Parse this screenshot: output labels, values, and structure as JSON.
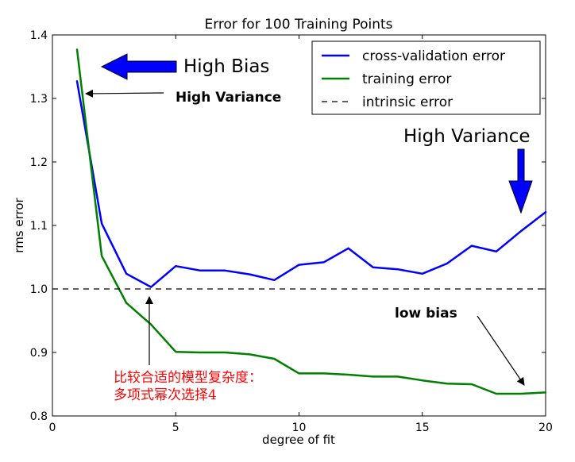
{
  "chart_data": {
    "type": "line",
    "title": "Error for 100 Training Points",
    "xlabel": "degree of fit",
    "ylabel": "rms error",
    "xlim": [
      0,
      20
    ],
    "ylim": [
      0.8,
      1.4
    ],
    "x_ticks": [
      0,
      5,
      10,
      15,
      20
    ],
    "y_ticks": [
      0.8,
      0.9,
      1.0,
      1.1,
      1.2,
      1.3,
      1.4
    ],
    "x_tick_labels": [
      "0",
      "5",
      "10",
      "15",
      "20"
    ],
    "y_tick_labels": [
      "0.8",
      "0.9",
      "1.0",
      "1.1",
      "1.2",
      "1.3",
      "1.4"
    ],
    "grid": false,
    "legend_position": "top-right",
    "series": [
      {
        "name": "cross-validation error",
        "color": "#0000ff",
        "style": "solid",
        "x": [
          1,
          2,
          3,
          4,
          5,
          6,
          7,
          8,
          9,
          10,
          11,
          12,
          13,
          14,
          15,
          16,
          17,
          18,
          19,
          20
        ],
        "values": [
          1.327,
          1.103,
          1.024,
          1.003,
          1.036,
          1.029,
          1.029,
          1.023,
          1.014,
          1.038,
          1.042,
          1.064,
          1.034,
          1.031,
          1.024,
          1.04,
          1.068,
          1.059,
          1.091,
          1.121
        ]
      },
      {
        "name": "training error",
        "color": "#008000",
        "style": "solid",
        "x": [
          1,
          2,
          3,
          4,
          5,
          6,
          7,
          8,
          9,
          10,
          11,
          12,
          13,
          14,
          15,
          16,
          17,
          18,
          19,
          20
        ],
        "values": [
          1.377,
          1.052,
          0.978,
          0.944,
          0.901,
          0.9,
          0.9,
          0.897,
          0.89,
          0.867,
          0.867,
          0.865,
          0.862,
          0.862,
          0.856,
          0.851,
          0.85,
          0.835,
          0.835,
          0.837
        ]
      },
      {
        "name": "intrinsic error",
        "color": "#000000",
        "style": "dashed",
        "y_constant": 1.0
      }
    ],
    "annotations": {
      "high_bias": "High Bias",
      "high_variance_left": "High Variance",
      "high_variance_right": "High Variance",
      "low_bias": "low bias",
      "best_complexity_line1": "比较合适的模型复杂度：",
      "best_complexity_line2": "多项式幂次选择4"
    }
  },
  "colors": {
    "annotation_arrow_blue": "#0000ff",
    "annotation_red": "#ff0000",
    "axis": "#000000"
  }
}
